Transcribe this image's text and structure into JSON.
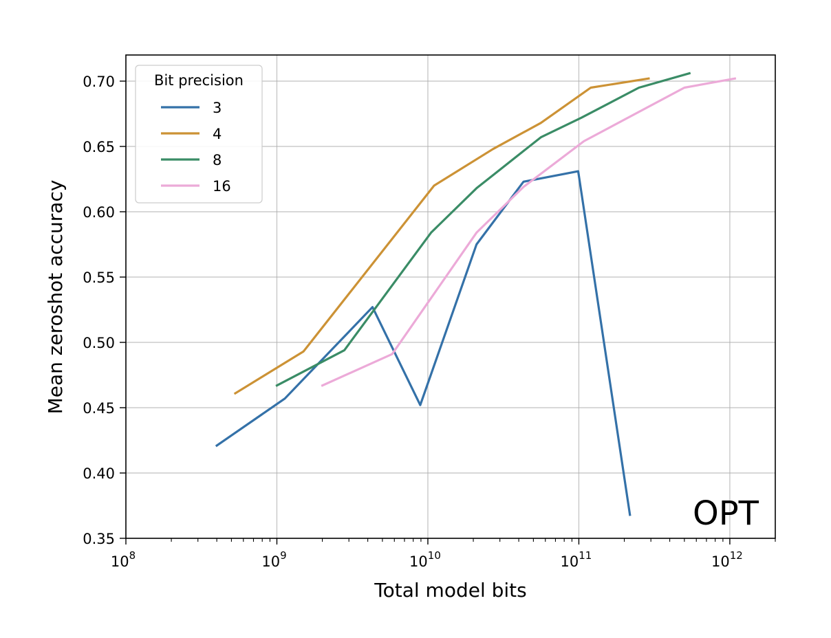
{
  "chart_data": {
    "type": "line",
    "xscale": "log",
    "xlim": [
      100000000,
      2000000000000
    ],
    "ylim": [
      0.35,
      0.72
    ],
    "xlabel": "Total model bits",
    "ylabel": "Mean zeroshot accuracy",
    "annotation": "OPT",
    "grid": true,
    "legend": {
      "title": "Bit precision",
      "position": "top-left"
    },
    "x_ticks": [
      {
        "base": "10",
        "exp": "8",
        "value": 100000000
      },
      {
        "base": "10",
        "exp": "9",
        "value": 1000000000
      },
      {
        "base": "10",
        "exp": "10",
        "value": 10000000000
      },
      {
        "base": "10",
        "exp": "11",
        "value": 100000000000
      },
      {
        "base": "10",
        "exp": "12",
        "value": 1000000000000
      }
    ],
    "y_ticks": [
      {
        "label": "0.35",
        "value": 0.35
      },
      {
        "label": "0.40",
        "value": 0.4
      },
      {
        "label": "0.45",
        "value": 0.45
      },
      {
        "label": "0.50",
        "value": 0.5
      },
      {
        "label": "0.55",
        "value": 0.55
      },
      {
        "label": "0.60",
        "value": 0.6
      },
      {
        "label": "0.65",
        "value": 0.65
      },
      {
        "label": "0.70",
        "value": 0.7
      }
    ],
    "series": [
      {
        "name": "3",
        "color": "#3471a8",
        "x": [
          400000000,
          1130000000,
          4300000000,
          8900000000,
          21000000000,
          43000000000,
          99000000000,
          218000000000
        ],
        "y": [
          0.421,
          0.457,
          0.527,
          0.452,
          0.575,
          0.623,
          0.631,
          0.368
        ]
      },
      {
        "name": "4",
        "color": "#cc9235",
        "x": [
          530000000,
          1500000000,
          11000000000,
          27000000000,
          56000000000,
          120000000000,
          290000000000
        ],
        "y": [
          0.461,
          0.493,
          0.62,
          0.648,
          0.668,
          0.695,
          0.702
        ]
      },
      {
        "name": "8",
        "color": "#3a8c66",
        "x": [
          1000000000,
          2800000000,
          10500000000,
          21000000000,
          56000000000,
          104000000000,
          250000000000,
          540000000000
        ],
        "y": [
          0.467,
          0.494,
          0.584,
          0.618,
          0.657,
          0.672,
          0.695,
          0.706
        ]
      },
      {
        "name": "16",
        "color": "#ecaad8",
        "x": [
          2000000000,
          5800000000,
          21000000000,
          43000000000,
          108000000000,
          500000000000,
          1080000000000
        ],
        "y": [
          0.467,
          0.491,
          0.584,
          0.619,
          0.654,
          0.695,
          0.702
        ]
      }
    ]
  }
}
